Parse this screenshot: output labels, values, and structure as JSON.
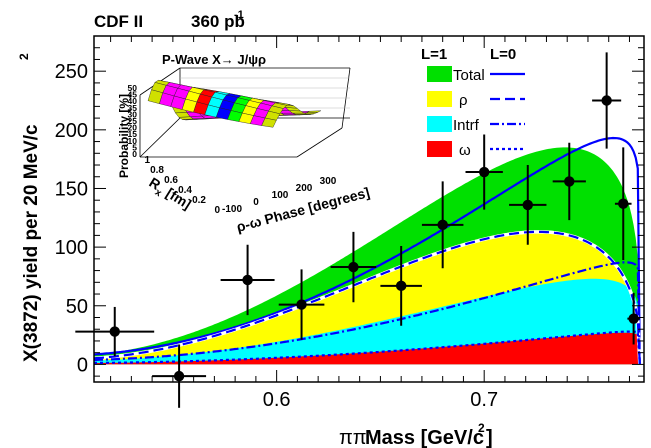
{
  "header": {
    "experiment": "CDF II",
    "luminosity": "360 pb",
    "luminosity_sup": "-1"
  },
  "chart_data": {
    "type": "area",
    "xlabel_prefix": "ππ",
    "xlabel": "Mass [GeV/c",
    "xlabel_sup": "2",
    "xlabel_suffix": "]",
    "ylabel": "X(3872) yield per 20 MeV/c",
    "ylabel_sup": "2",
    "xlim": [
      0.512,
      0.777
    ],
    "ylim": [
      -15,
      280
    ],
    "x_ticks": [
      0.6,
      0.7
    ],
    "x_tick_labels": [
      "0.6",
      "0.7"
    ],
    "y_ticks": [
      0,
      50,
      100,
      150,
      200,
      250
    ],
    "y_tick_labels": [
      "0",
      "50",
      "100",
      "150",
      "200",
      "250"
    ],
    "x_minor_step": 0.01,
    "y_minor_step": 10,
    "kinematic_endpoint": 0.775,
    "stacked_fills_L1": [
      {
        "name": "Total",
        "color": "#00e000",
        "peak_x": 0.738,
        "peak_y": 185
      },
      {
        "name": "ρ",
        "color": "#ffff00",
        "peak_x": 0.724,
        "peak_y": 112
      },
      {
        "name": "Intrf",
        "color": "#00ffff",
        "peak_x": 0.752,
        "peak_y": 73
      },
      {
        "name": "ω",
        "color": "#ff0000",
        "peak_x": 0.767,
        "peak_y": 27
      }
    ],
    "curves_L0": [
      {
        "name": "Total",
        "style": "solid",
        "color": "#0000ff",
        "peak_x": 0.762,
        "peak_y": 193
      },
      {
        "name": "ρ",
        "style": "dashed",
        "color": "#0000ff",
        "peak_x": 0.725,
        "peak_y": 113
      },
      {
        "name": "Intrf",
        "style": "dashdot",
        "color": "#0000ff",
        "peak_x": 0.768,
        "peak_y": 87
      },
      {
        "name": "ω",
        "style": "dotted",
        "color": "#0000ff",
        "peak_x": 0.77,
        "peak_y": 28
      }
    ],
    "data_points": [
      {
        "x": 0.522,
        "y": 28,
        "xerr": 0.019,
        "yerr": 21
      },
      {
        "x": 0.553,
        "y": -10,
        "xerr": 0.013,
        "yerr": 27
      },
      {
        "x": 0.586,
        "y": 72,
        "xerr": 0.013,
        "yerr": 30
      },
      {
        "x": 0.612,
        "y": 51,
        "xerr": 0.011,
        "yerr": 30
      },
      {
        "x": 0.637,
        "y": 83,
        "xerr": 0.011,
        "yerr": 30
      },
      {
        "x": 0.66,
        "y": 67,
        "xerr": 0.01,
        "yerr": 34
      },
      {
        "x": 0.68,
        "y": 119,
        "xerr": 0.01,
        "yerr": 37
      },
      {
        "x": 0.7,
        "y": 164,
        "xerr": 0.009,
        "yerr": 32
      },
      {
        "x": 0.721,
        "y": 136,
        "xerr": 0.009,
        "yerr": 34
      },
      {
        "x": 0.741,
        "y": 156,
        "xerr": 0.008,
        "yerr": 33
      },
      {
        "x": 0.759,
        "y": 225,
        "xerr": 0.007,
        "yerr": 41
      },
      {
        "x": 0.767,
        "y": 137,
        "xerr": 0.004,
        "yerr": 48
      },
      {
        "x": 0.772,
        "y": 39,
        "xerr": 0.003,
        "yerr": 22
      }
    ]
  },
  "legend": {
    "col_L1": "L=1",
    "col_L0": "L=0",
    "entries": [
      "Total",
      "ρ",
      "Intrf",
      "ω"
    ]
  },
  "inset": {
    "title": "P-Wave X→ J/ψρ",
    "zlabel": "Probability [%]",
    "z_ticks": [
      "50",
      "45",
      "40",
      "35",
      "30",
      "25",
      "20",
      "15",
      "10",
      "5",
      "0"
    ],
    "rx_label": "R",
    "rx_sub": "x",
    "rx_unit": "[fm]",
    "rx_ticks": [
      "1",
      "0.8",
      "0.6",
      "0.4",
      "0.2",
      "0"
    ],
    "phase_label": "ρ-ω Phase [degrees]",
    "phase_ticks": [
      "-100",
      "0",
      "100",
      "200",
      "300"
    ],
    "band_colors": [
      "#d0e000",
      "#ff00ff",
      "#ff00ff",
      "#ffff00",
      "#ff0000",
      "#00ffff",
      "#0000ff",
      "#00ff00",
      "#ffff00",
      "#ff00ff",
      "#d0e000"
    ]
  }
}
